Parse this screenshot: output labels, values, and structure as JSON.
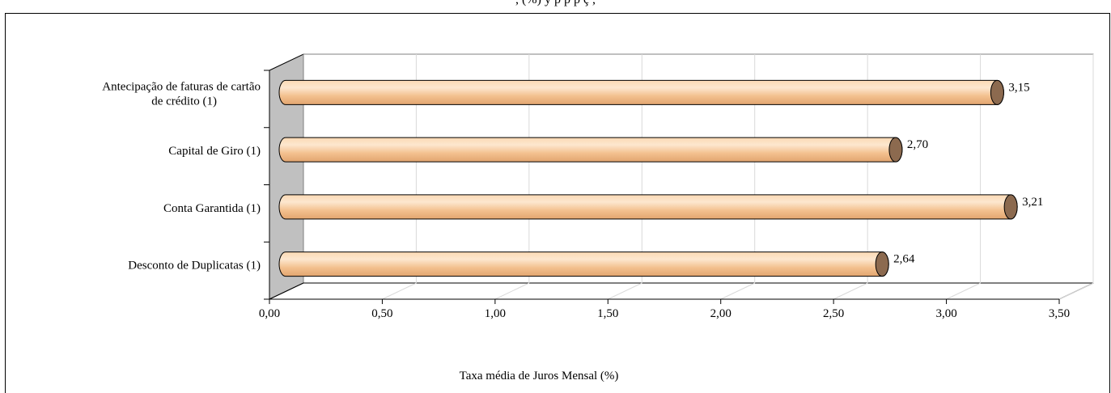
{
  "header_fragment": ", (%) y p p p ç ,",
  "chart_data": {
    "type": "bar",
    "orientation": "horizontal",
    "style": "3d-cylinder",
    "categories": [
      "Antecipação de faturas de cartão de crédito (1)",
      "Capital de Giro (1)",
      "Conta Garantida (1)",
      "Desconto de Duplicatas (1)"
    ],
    "category_lines": [
      [
        "Antecipação de faturas de cartão",
        "de crédito (1)"
      ],
      [
        "Capital de Giro (1)"
      ],
      [
        "Conta Garantida (1)"
      ],
      [
        "Desconto de Duplicatas (1)"
      ]
    ],
    "values": [
      3.15,
      2.7,
      3.21,
      2.64
    ],
    "value_labels": [
      "3,15",
      "2,70",
      "3,21",
      "2,64"
    ],
    "xlim": [
      0,
      3.5
    ],
    "x_ticks": [
      0,
      0.5,
      1.0,
      1.5,
      2.0,
      2.5,
      3.0,
      3.5
    ],
    "x_tick_labels": [
      "0,00",
      "0,50",
      "1,00",
      "1,50",
      "2,00",
      "2,50",
      "3,00",
      "3,50"
    ],
    "xlabel": "Taxa média de Juros Mensal (%)",
    "ylabel": "",
    "title": "",
    "grid": true,
    "legend": false,
    "colors": {
      "bar_light": "#fde3c4",
      "bar_main": "#f5c392",
      "bar_dark": "#e0a46f",
      "cap_fill": "#8c6a4f",
      "side_wall": "#c0c0c0",
      "grid": "#d9d9d9"
    }
  }
}
